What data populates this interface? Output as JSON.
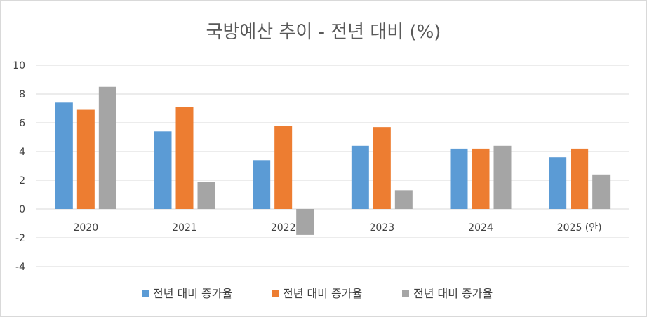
{
  "chart_data": {
    "type": "bar",
    "title": "국방예산 추이 - 전년 대비 (%)",
    "categories": [
      "2020",
      "2021",
      "2022",
      "2023",
      "2024",
      "2025 (안)"
    ],
    "series": [
      {
        "name": "전년 대비 증가율",
        "color": "#5b9bd5",
        "values": [
          7.4,
          5.4,
          3.4,
          4.4,
          4.2,
          3.6
        ]
      },
      {
        "name": "전년 대비 증가율",
        "color": "#ed7d31",
        "values": [
          6.9,
          7.1,
          5.8,
          5.7,
          4.2,
          4.2
        ]
      },
      {
        "name": "전년 대비 증가율",
        "color": "#a5a5a5",
        "values": [
          8.5,
          1.9,
          -1.8,
          1.3,
          4.4,
          2.4
        ]
      }
    ],
    "yticks": [
      10,
      8,
      6,
      4,
      2,
      0,
      -2,
      -4
    ],
    "ylim": [
      -4,
      10
    ],
    "grid": true,
    "legend": "bottom"
  }
}
